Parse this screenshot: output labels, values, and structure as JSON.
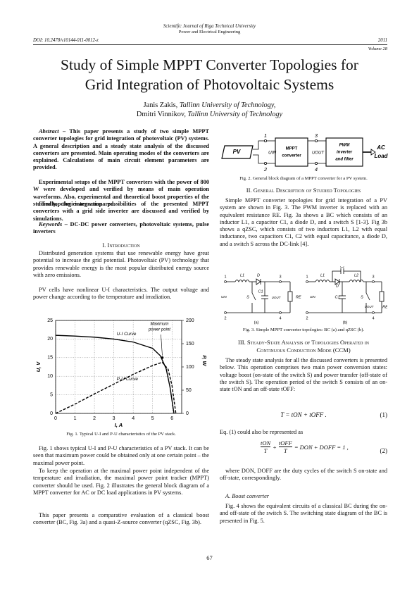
{
  "header": {
    "journal": "Scientific Journal of Riga Technical University",
    "subjournal": "Power and Electrical Engineering",
    "doi": "DOI: 10.2478/v10144-011-0012-z",
    "year": "2011",
    "volume": "Volume 28"
  },
  "title": [
    "Study of Simple MPPT Converter Topologies for",
    "Grid Integration of Photovoltaic Systems"
  ],
  "authors": [
    {
      "name": "Janis Zakis, ",
      "affiliation": "Tallinn University of Technology,"
    },
    {
      "name": "Dmitri Vinnikov, ",
      "affiliation": "Tallinn University of Technology"
    }
  ],
  "abstract": {
    "label": "Abstract",
    "paragraphs": [
      " – This paper presents a study of two simple MPPT converter topologies for grid integration of photovoltaic (PV) systems. A general description and a steady state analysis of the discussed converters are presented. Main operating modes of the converters are explained. Calculations of main circuit element parameters are provided.",
      "Experimental setups of the MPPT converters with the power of 800 W were developed and verified by means of main operation waveforms. Also, experimental and theoretical boost properties of the studied topologies are compared.",
      "Finally, the integration possibilities of the presented MPPT converters with a grid side inverter are discussed and verified by simulations."
    ]
  },
  "keywords": {
    "label": "Keywords",
    "text": " – DC-DC power converters, photovoltaic systems, pulse inverters"
  },
  "sections": [
    {
      "heading": "I. Introduction",
      "paragraphs": [
        "Distributed generation systems that use renewable energy have great potential to increase the grid potential. Photovoltaic (PV) technology that provides renewable energy is the most popular distributed energy source with zero emissions.",
        "PV cells have nonlinear U-I characteristics. The output voltage and power change according to the temperature and irradiation.",
        "Fig. 1 shows typical U-I and P-U characteristics of a PV stack. It can be seen that maximum power could be obtained only at one certain point – the maximal power point.",
        "To keep the operation at the maximal power point independent of the temperature and irradiation, the maximal power point tracker (MPPT) converter should be used. Fig. 2 illustrates the general block diagram of a MPPT converter for AC or DC load applications in PV systems.",
        "This paper presents a comparative evaluation of a classical boost converter (BC, Fig. 3a) and a quasi-Z-source converter (qZSC, Fig. 3b)."
      ]
    },
    {
      "heading": "II. General Description of Studied Topologies",
      "paragraphs": [
        "Simple MPPT converter topologies for grid integration of a PV system are shown in Fig. 3. The PWM inverter is replaced with an equivalent resistance RE. Fig. 3a shows a BC which consists of an inductor L1, a capacitor C1, a diode D, and a switch S [1-3]. Fig 3b shows a qZSC, which consists of two inductors L1, L2 with equal inductance, two capacitors C1, C2 with equal capacitance, a diode D, and a switch S across the DC-link [4]."
      ]
    },
    {
      "heading": "III. Steady-State Analysis of Topologies Operated in Continuous Conduction Mode (CCM)",
      "paragraphs": [
        "The steady state analysis for all the discussed converters is presented below. This operation comprises two main power conversion states: voltage boost (on-state of the switch S) and power transfer (off-state of the switch S). The operation period of the switch S consists of an on-state tON and an off-state tOFF:",
        "Eq. (1) could also be represented as",
        "where DON, DOFF are the duty cycles of the switch S on-state and off-state, correspondingly."
      ],
      "subsection": {
        "heading": "A. Boost converter",
        "paragraphs": [
          "Fig. 4 shows the equivalent circuits of a classical BC during the on- and off-state of the switch S. The switching state diagram of the BC is presented in Fig. 5."
        ]
      }
    }
  ],
  "equations": [
    {
      "body": "T = tON + tOFF .",
      "number": "(1)"
    },
    {
      "parts": [
        "tON",
        "T",
        "+",
        "tOFF",
        "T",
        "= DON + DOFF = 1 ,"
      ],
      "number": "(2)"
    }
  ],
  "figure1": {
    "caption": "Fig. 1. Typical U-I and P-U characteristics of the PV stack.",
    "xlabel": "I, A",
    "ylabel": "U, V",
    "y2label": "P, W",
    "xlim": [
      0,
      6.5
    ],
    "ylim": [
      0,
      25
    ],
    "y2lim": [
      0,
      200
    ],
    "xticks": [
      0,
      1,
      2,
      3,
      4,
      5,
      6
    ],
    "yticks": [
      0,
      5,
      10,
      15,
      20,
      25
    ],
    "y2ticks": [
      0,
      50,
      100,
      150,
      200
    ],
    "grid": true,
    "series": [
      {
        "name": "U-I Curve",
        "color": "#000000",
        "x": [
          0,
          1,
          2,
          3,
          4,
          5,
          5.4,
          5.7,
          5.9,
          6.1
        ],
        "values": [
          21,
          20.8,
          20.5,
          20,
          19.2,
          17.5,
          15.5,
          12,
          7,
          0
        ]
      },
      {
        "name": "P-U Curve",
        "color": "#000000",
        "axis": "y2",
        "x": [
          0,
          1,
          2,
          3,
          4,
          5,
          5.5,
          5.8,
          6,
          6.2
        ],
        "values": [
          0,
          20,
          42,
          63,
          84,
          103,
          110,
          95,
          60,
          0
        ]
      }
    ],
    "annotation": {
      "text": [
        "Maximum",
        "power point"
      ],
      "x": 5.5,
      "y": 15
    }
  },
  "figure2": {
    "caption": "Fig. 2. General block diagram of a MPPT converter for a PV system.",
    "pv": "PV",
    "terminals": [
      "1",
      "2",
      "3",
      "4"
    ],
    "uin": "UIN",
    "uout": "UOUT",
    "mppt": [
      "MPPT",
      "converter"
    ],
    "pwm": [
      "PWM",
      "inverter",
      "and filter"
    ],
    "load": [
      "AC",
      "Load"
    ]
  },
  "figure3": {
    "caption": "Fig. 3. Simple MPPT converter topologies: BC (a) and qZSC (b).",
    "a": {
      "labels": [
        "1",
        "2",
        "3",
        "4",
        "L1",
        "D",
        "S",
        "C1",
        "UOUT",
        "RE",
        "UIN"
      ],
      "tag": "(a)"
    },
    "b": {
      "labels": [
        "1",
        "2",
        "3",
        "4",
        "L1",
        "D",
        "C2",
        "L2",
        "S",
        "C1",
        "UOUT",
        "RE",
        "UIN"
      ],
      "tag": "(b)"
    }
  },
  "page_number": "67"
}
